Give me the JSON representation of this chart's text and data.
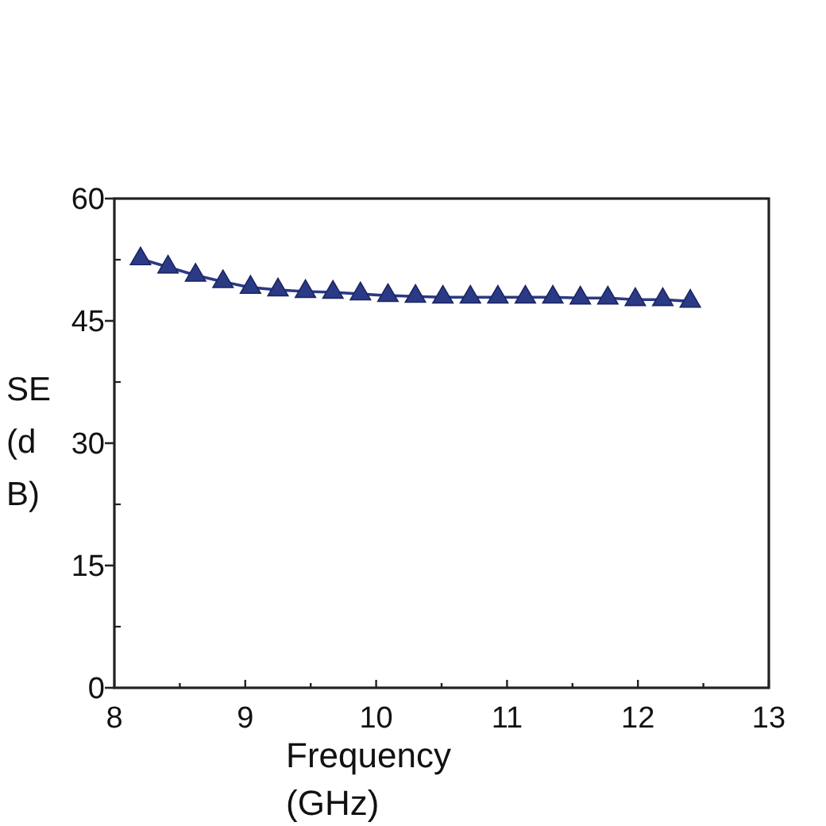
{
  "chart_data": {
    "type": "line",
    "xlabel": "Frequency (GHz)",
    "ylabel": "SE (dB)",
    "x": [
      8.2,
      8.41,
      8.62,
      8.83,
      9.04,
      9.25,
      9.46,
      9.67,
      9.88,
      10.09,
      10.3,
      10.51,
      10.72,
      10.93,
      11.14,
      11.35,
      11.56,
      11.77,
      11.98,
      12.19,
      12.4
    ],
    "series": [
      {
        "color": "#2b3a86",
        "values": [
          52.6,
          51.6,
          50.6,
          49.8,
          49.1,
          48.8,
          48.6,
          48.5,
          48.3,
          48.1,
          48.0,
          47.9,
          47.9,
          47.9,
          47.9,
          47.9,
          47.8,
          47.8,
          47.6,
          47.6,
          47.4
        ]
      }
    ],
    "xlim": [
      8,
      13
    ],
    "ylim": [
      0,
      60
    ],
    "xticks": [
      8,
      {
        "value": 8.5,
        "label": null
      },
      9,
      {
        "value": 9.5,
        "label": null
      },
      10,
      {
        "value": 10.5,
        "label": null
      },
      11,
      {
        "value": 11.5,
        "label": null
      },
      12,
      {
        "value": 12.5,
        "label": null
      },
      13
    ],
    "yticks": [
      0,
      {
        "value": 7.5,
        "label": null
      },
      15,
      {
        "value": 22.5,
        "label": null
      },
      30,
      {
        "value": 37.5,
        "label": null
      },
      45,
      {
        "value": 52.5,
        "label": null
      },
      60
    ],
    "marker": "triangle",
    "line_style": "solid"
  }
}
